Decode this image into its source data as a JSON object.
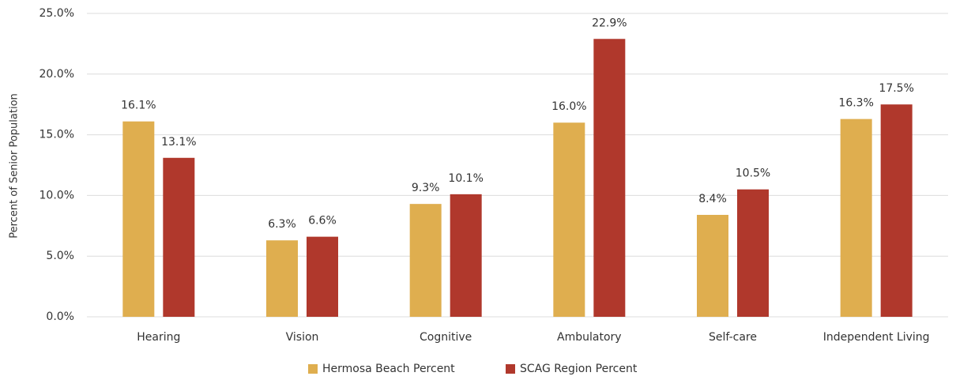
{
  "chart_data": {
    "type": "bar",
    "y_label": "Percent of Senior Population",
    "categories": [
      "Hearing",
      "Vision",
      "Cognitive",
      "Ambulatory",
      "Self-care",
      "Independent Living"
    ],
    "series": [
      {
        "name": "Hermosa Beach Percent",
        "color": "#dfae4f",
        "values": [
          16.1,
          6.3,
          9.3,
          16.0,
          8.4,
          16.3
        ],
        "value_labels": [
          "16.1%",
          "6.3%",
          "9.3%",
          "16.0%",
          "8.4%",
          "16.3%"
        ]
      },
      {
        "name": "SCAG Region Percent",
        "color": "#b0382c",
        "values": [
          13.1,
          6.6,
          10.1,
          22.9,
          10.5,
          17.5
        ],
        "value_labels": [
          "13.1%",
          "6.6%",
          "10.1%",
          "22.9%",
          "10.5%",
          "17.5%"
        ]
      }
    ],
    "ylim": [
      0,
      25
    ],
    "yticks": [
      {
        "value": 0,
        "label": "0.0%"
      },
      {
        "value": 5,
        "label": "5.0%"
      },
      {
        "value": 10,
        "label": "10.0%"
      },
      {
        "value": 15,
        "label": "15.0%"
      },
      {
        "value": 20,
        "label": "20.0%"
      },
      {
        "value": 25,
        "label": "25.0%"
      }
    ],
    "grid": true,
    "legend": "bottom"
  }
}
